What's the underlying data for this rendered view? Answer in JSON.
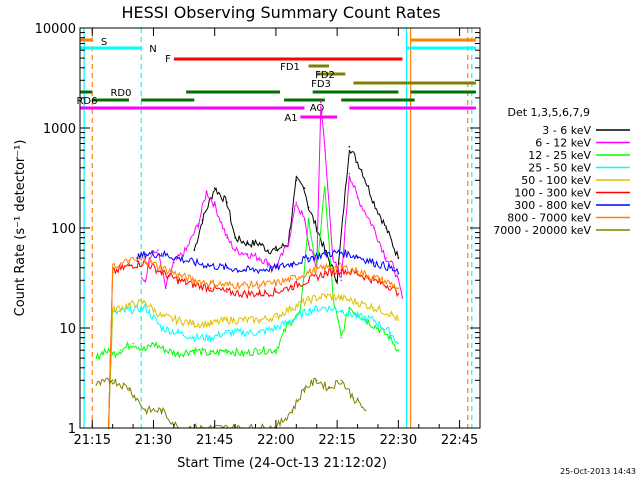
{
  "chart_data": {
    "type": "line",
    "title": "HESSI Observing Summary Count Rates",
    "xlabel": "Start Time (24-Oct-13 21:12:02)",
    "ylabel": "Count Rate (s⁻¹ detector⁻¹)",
    "xlim": [
      "21:12",
      "22:50"
    ],
    "ylim": [
      1,
      10000
    ],
    "y_scale": "log",
    "x_ticks": [
      "21:15",
      "21:30",
      "21:45",
      "22:00",
      "22:15",
      "22:30",
      "22:45"
    ],
    "y_ticks": [
      "1",
      "10",
      "100",
      "1000",
      "10000"
    ],
    "legend": {
      "title": "Det 1,3,5,6,7,9",
      "position": "right",
      "entries": [
        "3 - 6 keV",
        "6 - 12 keV",
        "12 - 25 keV",
        "25 - 50 keV",
        "50 - 100 keV",
        "100 - 300 keV",
        "300 - 800 keV",
        "800 - 7000 keV",
        "7000 - 20000 keV"
      ]
    },
    "series": [
      {
        "name": "3 - 6 keV",
        "color": "#000000",
        "x": [
          "21:40",
          "21:42",
          "21:45",
          "21:48",
          "21:50",
          "21:53",
          "21:56",
          "21:58",
          "22:00",
          "22:03",
          "22:05",
          "22:07",
          "22:08",
          "22:10",
          "22:12",
          "22:15",
          "22:18",
          "22:21",
          "22:24",
          "22:27",
          "22:30"
        ],
        "y": [
          60,
          120,
          250,
          180,
          80,
          70,
          70,
          60,
          60,
          70,
          300,
          250,
          160,
          100,
          60,
          30,
          650,
          380,
          180,
          100,
          50
        ]
      },
      {
        "name": "6 - 12 keV",
        "color": "#ff00ff",
        "x": [
          "21:27",
          "21:28",
          "21:29",
          "21:31",
          "21:33",
          "21:35",
          "21:38",
          "21:41",
          "21:43",
          "21:45",
          "21:48",
          "21:50",
          "21:53",
          "21:56",
          "21:58",
          "22:00",
          "22:03",
          "22:05",
          "22:07",
          "22:08",
          "22:10",
          "22:11",
          "22:12",
          "22:14",
          "22:16",
          "22:18",
          "22:20",
          "22:24",
          "22:27",
          "22:29",
          "22:31"
        ],
        "y": [
          35,
          30,
          50,
          60,
          25,
          45,
          60,
          110,
          230,
          170,
          80,
          60,
          55,
          50,
          45,
          40,
          70,
          180,
          120,
          70,
          40,
          1800,
          600,
          50,
          30,
          350,
          200,
          100,
          50,
          40,
          20
        ]
      },
      {
        "name": "12 - 25 keV",
        "color": "#00ff00",
        "x": [
          "21:16",
          "21:18",
          "21:20",
          "21:22",
          "21:25",
          "21:28",
          "21:30",
          "21:33",
          "21:36",
          "21:40",
          "21:44",
          "21:48",
          "21:52",
          "21:56",
          "22:00",
          "22:03",
          "22:06",
          "22:08",
          "22:10",
          "22:12",
          "22:14",
          "22:16",
          "22:18",
          "22:20",
          "22:22",
          "22:25",
          "22:28",
          "22:30"
        ],
        "y": [
          5,
          6,
          5.5,
          6,
          7,
          6,
          7,
          6,
          5.5,
          6,
          5.5,
          6,
          5.5,
          6,
          6,
          11,
          14,
          120,
          40,
          250,
          20,
          8,
          16,
          14,
          12,
          10,
          8,
          6
        ]
      },
      {
        "name": "25 - 50 keV",
        "color": "#00ffff",
        "x": [
          "21:19",
          "21:20",
          "21:24",
          "21:28",
          "21:32",
          "21:36",
          "21:40",
          "21:44",
          "21:48",
          "21:52",
          "21:56",
          "22:00",
          "22:04",
          "22:08",
          "22:12",
          "22:16",
          "22:20",
          "22:24",
          "22:28",
          "22:30"
        ],
        "y": [
          1,
          14,
          15,
          16,
          10,
          9,
          8,
          8,
          9,
          9,
          9,
          10,
          12,
          15,
          16,
          15,
          13,
          12,
          9,
          7
        ]
      },
      {
        "name": "50 - 100 keV",
        "color": "#e0c000",
        "x": [
          "21:19",
          "21:20",
          "21:24",
          "21:28",
          "21:32",
          "21:36",
          "21:40",
          "21:44",
          "21:48",
          "21:52",
          "21:56",
          "22:00",
          "22:04",
          "22:08",
          "22:12",
          "22:16",
          "22:20",
          "22:24",
          "22:28",
          "22:30"
        ],
        "y": [
          1,
          15,
          17,
          18,
          13,
          12,
          11,
          11,
          12,
          12,
          12,
          13,
          16,
          19,
          21,
          20,
          18,
          16,
          14,
          12
        ]
      },
      {
        "name": "100 - 300 keV",
        "color": "#ff0000",
        "x": [
          "21:19",
          "21:20",
          "21:24",
          "21:28",
          "21:32",
          "21:36",
          "21:40",
          "21:44",
          "21:48",
          "21:52",
          "21:56",
          "22:00",
          "22:04",
          "22:08",
          "22:12",
          "22:16",
          "22:20",
          "22:24",
          "22:28",
          "22:30"
        ],
        "y": [
          1,
          36,
          42,
          45,
          36,
          30,
          27,
          25,
          23,
          22,
          22,
          23,
          26,
          30,
          35,
          38,
          35,
          30,
          26,
          22
        ]
      },
      {
        "name": "300 - 800 keV",
        "color": "#0000ff",
        "x": [
          "21:26",
          "21:28",
          "21:32",
          "21:36",
          "21:40",
          "21:44",
          "21:48",
          "21:52",
          "21:56",
          "22:00",
          "22:04",
          "22:08",
          "22:12",
          "22:16",
          "22:20",
          "22:24",
          "22:28",
          "22:30"
        ],
        "y": [
          50,
          55,
          55,
          50,
          45,
          42,
          40,
          38,
          38,
          40,
          44,
          50,
          55,
          57,
          52,
          45,
          40,
          35
        ]
      },
      {
        "name": "800 - 7000 keV",
        "color": "#ff8000",
        "x": [
          "21:19",
          "21:20",
          "21:24",
          "21:28",
          "21:32",
          "21:36",
          "21:40",
          "21:44",
          "21:48",
          "21:52",
          "21:56",
          "22:00",
          "22:04",
          "22:08",
          "22:12",
          "22:16",
          "22:20",
          "22:24",
          "22:28",
          "22:30"
        ],
        "y": [
          1,
          40,
          47,
          48,
          40,
          34,
          30,
          28,
          27,
          27,
          27,
          28,
          31,
          36,
          40,
          41,
          37,
          32,
          28,
          25
        ]
      },
      {
        "name": "7000 - 20000 keV",
        "color": "#808000",
        "x": [
          "21:16",
          "21:20",
          "21:24",
          "21:28",
          "21:32",
          "21:36",
          "21:40",
          "21:44",
          "21:48",
          "21:52",
          "21:56",
          "22:00",
          "22:04",
          "22:07",
          "22:10",
          "22:13",
          "22:16",
          "22:19",
          "22:22"
        ],
        "y": [
          2.7,
          3,
          2.5,
          1.5,
          1.5,
          1,
          1,
          1,
          1,
          1,
          1,
          1,
          1.5,
          2.5,
          3,
          2.5,
          3,
          2,
          1.5
        ]
      }
    ],
    "state_bars": [
      {
        "label": "S",
        "color": "#ff8000",
        "segments": [
          [
            "21:12",
            "21:15"
          ],
          [
            "22:33",
            "22:49"
          ]
        ]
      },
      {
        "label": "N",
        "color": "#00ffff",
        "segments": [
          [
            "21:12",
            "21:27"
          ],
          [
            "22:32",
            "22:49"
          ]
        ]
      },
      {
        "label": "F",
        "color": "#ff0000",
        "segments": [
          [
            "21:35",
            "22:31"
          ]
        ]
      },
      {
        "label": "FD1",
        "color": "#808000",
        "segments": [
          [
            "22:08",
            "22:13"
          ]
        ]
      },
      {
        "label": "FD2",
        "color": "#808000",
        "segments": [
          [
            "22:10",
            "22:17"
          ]
        ]
      },
      {
        "label": "FD3",
        "color": "#808000",
        "segments": [
          [
            "22:19",
            "22:49"
          ]
        ]
      },
      {
        "label": "RD0",
        "color": "#007000",
        "segments": [
          [
            "21:12",
            "21:15"
          ],
          [
            "21:38",
            "22:01"
          ],
          [
            "22:09",
            "22:30"
          ],
          [
            "22:33",
            "22:49"
          ]
        ]
      },
      {
        "label": "RD6",
        "color": "#007000",
        "segments": [
          [
            "21:15",
            "21:24"
          ],
          [
            "21:27",
            "21:40"
          ],
          [
            "22:02",
            "22:12"
          ],
          [
            "22:16",
            "22:34"
          ]
        ]
      },
      {
        "label": "AQ",
        "color": "#ff00ff",
        "segments": [
          [
            "21:12",
            "22:07"
          ],
          [
            "22:18",
            "22:49"
          ]
        ]
      },
      {
        "label": "A1",
        "color": "#ff00ff",
        "segments": [
          [
            "22:06",
            "22:15"
          ]
        ]
      }
    ],
    "vertical_markers": [
      {
        "time": "21:13",
        "color": "#00ffff",
        "style": "solid"
      },
      {
        "time": "21:15",
        "color": "#ff8000",
        "style": "dashed"
      },
      {
        "time": "21:27",
        "color": "#00ffff",
        "style": "dashed"
      },
      {
        "time": "22:32",
        "color": "#00ffff",
        "style": "solid"
      },
      {
        "time": "22:33",
        "color": "#ff8000",
        "style": "solid"
      },
      {
        "time": "22:47",
        "color": "#ff8000",
        "style": "dashed"
      },
      {
        "time": "22:48",
        "color": "#00ffff",
        "style": "dashed"
      }
    ],
    "timestamp": "25-Oct-2013 14:43"
  }
}
